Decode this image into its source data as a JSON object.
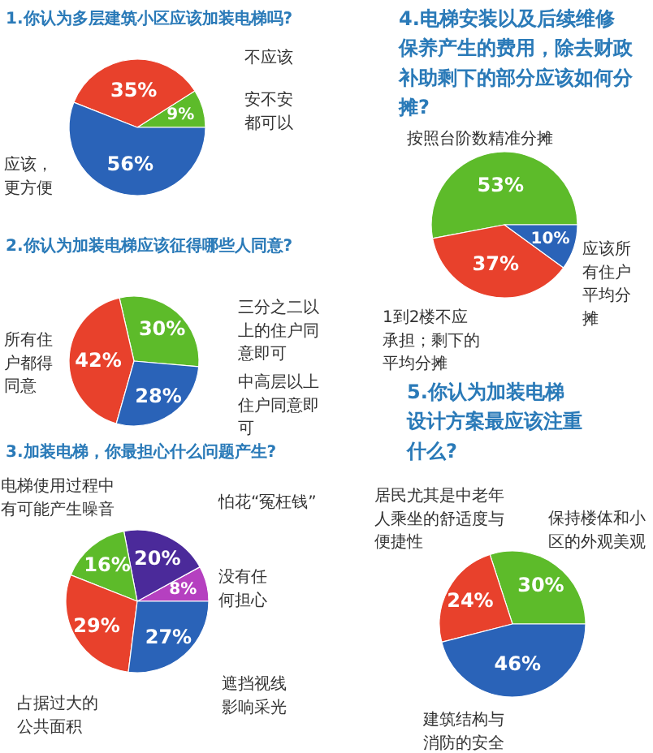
{
  "chart_data": [
    {
      "type": "pie",
      "title": "1.你认为多层建筑小区应该加装电梯吗?",
      "categories": [
        "安不安都可以",
        "不应该",
        "应该，更方便"
      ],
      "values": [
        9,
        35,
        56
      ],
      "value_labels": [
        "9%",
        "35%",
        "56%"
      ],
      "colors": [
        "#5dbb2a",
        "#e8412c",
        "#2a63b8"
      ]
    },
    {
      "type": "pie",
      "title": "2.你认为加装电梯应该征得哪些人同意?",
      "categories": [
        "三分之二以上的住户同意即可",
        "所有住户都得同意",
        "中高层以上住户同意即可"
      ],
      "values": [
        30,
        42,
        28
      ],
      "value_labels": [
        "30%",
        "42%",
        "28%"
      ],
      "colors": [
        "#5dbb2a",
        "#e8412c",
        "#2a63b8"
      ]
    },
    {
      "type": "pie",
      "title": "3.加装电梯，你最担心什么问题产生?",
      "categories": [
        "没有任何担心",
        "怕花“冤枉钱”",
        "电梯使用过程中有可能产生噪音",
        "占据过大的公共面积",
        "遮挡视线影响采光"
      ],
      "values": [
        8,
        20,
        16,
        29,
        27
      ],
      "value_labels": [
        "8%",
        "20%",
        "16%",
        "29%",
        "27%"
      ],
      "colors": [
        "#b540c0",
        "#4b2a9a",
        "#5dbb2a",
        "#e8412c",
        "#2a63b8"
      ]
    },
    {
      "type": "pie",
      "title": "4.电梯安装以及后续维修保养产生的费用，除去财政补助剩下的部分应该如何分摊?",
      "categories": [
        "按照台阶数精准分摊",
        "1到2楼不应承担；剩下的平均分摊",
        "应该所有住户平均分摊"
      ],
      "values": [
        53,
        37,
        10
      ],
      "value_labels": [
        "53%",
        "37%",
        "10%"
      ],
      "colors": [
        "#5dbb2a",
        "#e8412c",
        "#2a63b8"
      ]
    },
    {
      "type": "pie",
      "title": "5.你认为加装电梯设计方案最应该注重什么?",
      "categories": [
        "保持楼体和小区的外观美观",
        "居民尤其是中老年人乘坐的舒适度与便捷性",
        "建筑结构与消防的安全性"
      ],
      "values": [
        30,
        24,
        46
      ],
      "value_labels": [
        "30%",
        "24%",
        "46%"
      ],
      "colors": [
        "#5dbb2a",
        "#e8412c",
        "#2a63b8"
      ]
    }
  ]
}
